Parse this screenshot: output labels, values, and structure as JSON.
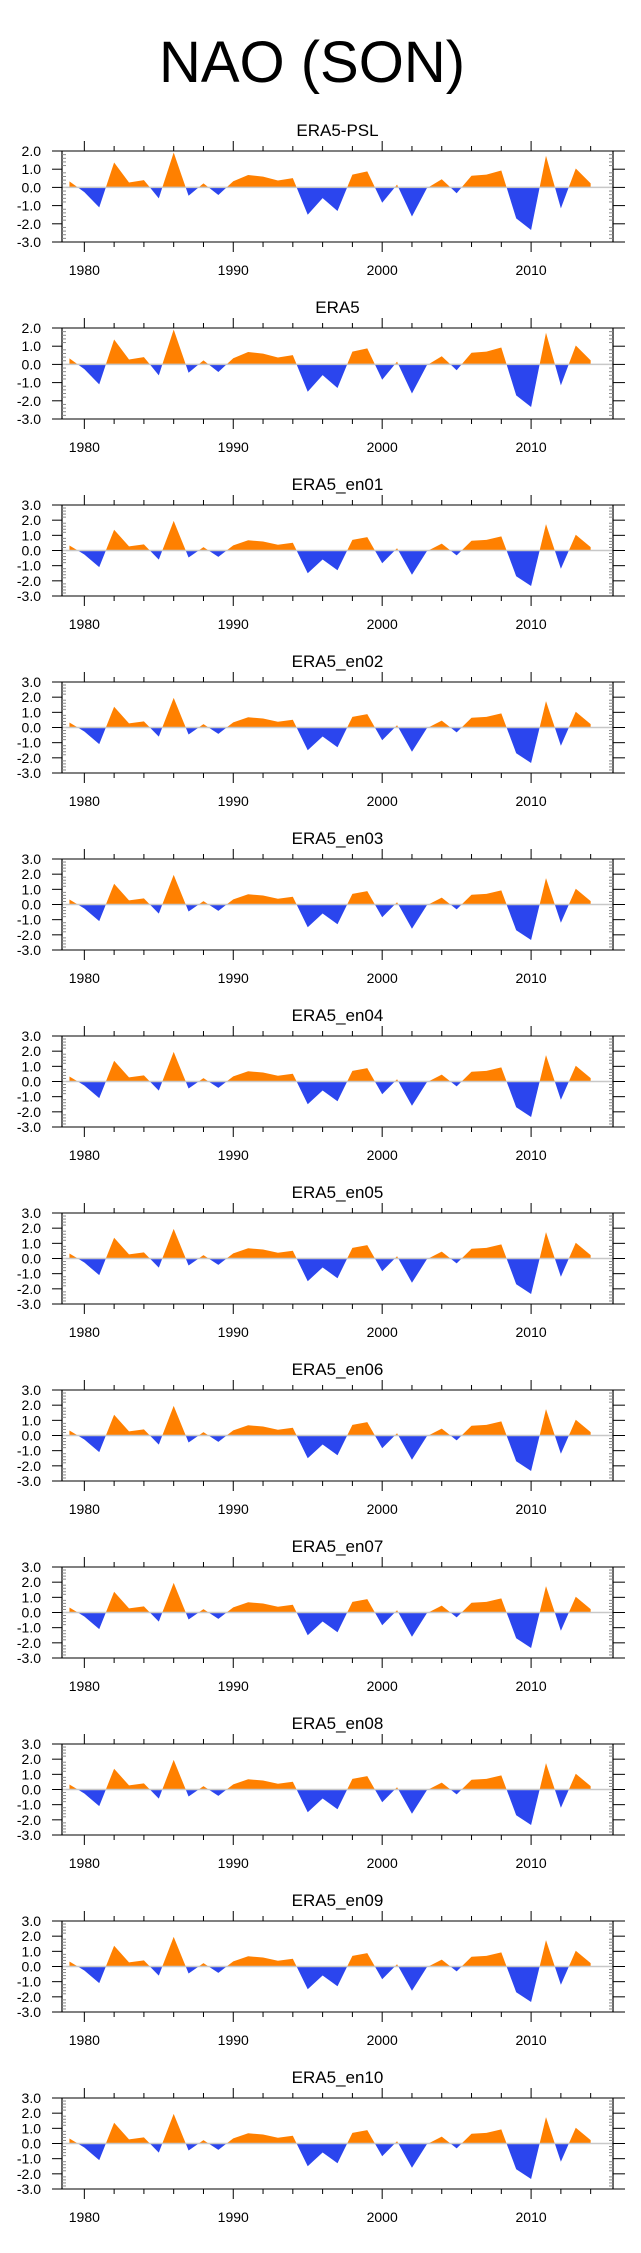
{
  "title": "NAO (SON)",
  "chart_data": {
    "type": "area",
    "title": "NAO (SON)",
    "xlabel": "",
    "ylabel": "",
    "x": [
      1979,
      1980,
      1981,
      1982,
      1983,
      1984,
      1985,
      1986,
      1987,
      1988,
      1989,
      1990,
      1991,
      1992,
      1993,
      1994,
      1995,
      1996,
      1997,
      1998,
      1999,
      2000,
      2001,
      2002,
      2003,
      2004,
      2005,
      2006,
      2007,
      2008,
      2009,
      2010,
      2011,
      2012,
      2013,
      2014
    ],
    "xlim": [
      1978.5,
      2015.5
    ],
    "x_major_ticks": [
      1980,
      1990,
      2000,
      2010
    ],
    "x_minor_tick_step": 2,
    "positive_color": "#FF8000",
    "negative_color": "#2B45EE",
    "zero_line_color": "#C8C8C8",
    "grid": false,
    "legend": "none",
    "panels": [
      {
        "name": "ERA5-PSL",
        "ylim": [
          -3.0,
          2.0
        ],
        "yticks": [
          "2.0",
          "1.0",
          "0.0",
          "-1.0",
          "-2.0",
          "-3.0"
        ],
        "values": [
          0.33,
          -0.26,
          -1.1,
          1.37,
          0.27,
          0.4,
          -0.6,
          1.92,
          -0.46,
          0.22,
          -0.42,
          0.34,
          0.68,
          0.59,
          0.38,
          0.51,
          -1.5,
          -0.59,
          -1.3,
          0.7,
          0.88,
          -0.84,
          0.15,
          -1.6,
          -0.05,
          0.45,
          -0.32,
          0.64,
          0.7,
          0.93,
          -1.7,
          -2.34,
          1.74,
          -1.15,
          1.04,
          0.22
        ]
      },
      {
        "name": "ERA5",
        "ylim": [
          -3.0,
          2.0
        ],
        "yticks": [
          "2.0",
          "1.0",
          "0.0",
          "-1.0",
          "-2.0",
          "-3.0"
        ],
        "values": [
          0.33,
          -0.26,
          -1.1,
          1.37,
          0.27,
          0.4,
          -0.6,
          1.92,
          -0.46,
          0.22,
          -0.42,
          0.34,
          0.68,
          0.59,
          0.38,
          0.51,
          -1.5,
          -0.59,
          -1.3,
          0.7,
          0.88,
          -0.84,
          0.15,
          -1.6,
          -0.05,
          0.45,
          -0.32,
          0.64,
          0.7,
          0.93,
          -1.7,
          -2.34,
          1.74,
          -1.15,
          1.04,
          0.22
        ]
      },
      {
        "name": "ERA5_en01",
        "ylim": [
          -3.0,
          3.0
        ],
        "yticks": [
          "3.0",
          "2.0",
          "1.0",
          "0.0",
          "-1.0",
          "-2.0",
          "-3.0"
        ],
        "values": [
          0.33,
          -0.26,
          -1.1,
          1.37,
          0.27,
          0.4,
          -0.6,
          1.95,
          -0.46,
          0.22,
          -0.42,
          0.34,
          0.68,
          0.59,
          0.38,
          0.51,
          -1.5,
          -0.59,
          -1.3,
          0.7,
          0.88,
          -0.84,
          0.15,
          -1.6,
          -0.05,
          0.45,
          -0.32,
          0.64,
          0.7,
          0.93,
          -1.7,
          -2.34,
          1.74,
          -1.2,
          1.04,
          0.22
        ]
      },
      {
        "name": "ERA5_en02",
        "ylim": [
          -3.0,
          3.0
        ],
        "yticks": [
          "3.0",
          "2.0",
          "1.0",
          "0.0",
          "-1.0",
          "-2.0",
          "-3.0"
        ],
        "values": [
          0.33,
          -0.26,
          -1.1,
          1.37,
          0.27,
          0.4,
          -0.6,
          1.95,
          -0.46,
          0.22,
          -0.42,
          0.34,
          0.68,
          0.59,
          0.38,
          0.51,
          -1.5,
          -0.59,
          -1.3,
          0.7,
          0.88,
          -0.84,
          0.15,
          -1.6,
          -0.05,
          0.45,
          -0.32,
          0.64,
          0.7,
          0.93,
          -1.7,
          -2.34,
          1.74,
          -1.2,
          1.04,
          0.22
        ]
      },
      {
        "name": "ERA5_en03",
        "ylim": [
          -3.0,
          3.0
        ],
        "yticks": [
          "3.0",
          "2.0",
          "1.0",
          "0.0",
          "-1.0",
          "-2.0",
          "-3.0"
        ],
        "values": [
          0.33,
          -0.26,
          -1.1,
          1.37,
          0.27,
          0.4,
          -0.6,
          1.95,
          -0.46,
          0.22,
          -0.42,
          0.34,
          0.68,
          0.59,
          0.38,
          0.51,
          -1.5,
          -0.59,
          -1.3,
          0.7,
          0.88,
          -0.84,
          0.15,
          -1.6,
          -0.05,
          0.45,
          -0.32,
          0.64,
          0.7,
          0.93,
          -1.7,
          -2.34,
          1.74,
          -1.2,
          1.04,
          0.22
        ]
      },
      {
        "name": "ERA5_en04",
        "ylim": [
          -3.0,
          3.0
        ],
        "yticks": [
          "3.0",
          "2.0",
          "1.0",
          "0.0",
          "-1.0",
          "-2.0",
          "-3.0"
        ],
        "values": [
          0.33,
          -0.26,
          -1.1,
          1.37,
          0.27,
          0.4,
          -0.6,
          1.95,
          -0.46,
          0.22,
          -0.42,
          0.34,
          0.68,
          0.59,
          0.38,
          0.51,
          -1.5,
          -0.59,
          -1.3,
          0.7,
          0.88,
          -0.84,
          0.15,
          -1.6,
          -0.05,
          0.45,
          -0.32,
          0.64,
          0.7,
          0.93,
          -1.7,
          -2.34,
          1.74,
          -1.2,
          1.04,
          0.22
        ]
      },
      {
        "name": "ERA5_en05",
        "ylim": [
          -3.0,
          3.0
        ],
        "yticks": [
          "3.0",
          "2.0",
          "1.0",
          "0.0",
          "-1.0",
          "-2.0",
          "-3.0"
        ],
        "values": [
          0.33,
          -0.26,
          -1.1,
          1.37,
          0.27,
          0.4,
          -0.6,
          1.95,
          -0.46,
          0.22,
          -0.42,
          0.34,
          0.68,
          0.59,
          0.38,
          0.51,
          -1.5,
          -0.59,
          -1.3,
          0.7,
          0.88,
          -0.84,
          0.15,
          -1.6,
          -0.05,
          0.45,
          -0.32,
          0.64,
          0.7,
          0.93,
          -1.7,
          -2.34,
          1.74,
          -1.2,
          1.04,
          0.22
        ]
      },
      {
        "name": "ERA5_en06",
        "ylim": [
          -3.0,
          3.0
        ],
        "yticks": [
          "3.0",
          "2.0",
          "1.0",
          "0.0",
          "-1.0",
          "-2.0",
          "-3.0"
        ],
        "values": [
          0.33,
          -0.26,
          -1.1,
          1.37,
          0.27,
          0.4,
          -0.6,
          1.95,
          -0.46,
          0.22,
          -0.42,
          0.34,
          0.68,
          0.59,
          0.38,
          0.51,
          -1.5,
          -0.59,
          -1.3,
          0.7,
          0.88,
          -0.84,
          0.15,
          -1.6,
          -0.05,
          0.45,
          -0.32,
          0.64,
          0.7,
          0.93,
          -1.7,
          -2.34,
          1.74,
          -1.2,
          1.04,
          0.22
        ]
      },
      {
        "name": "ERA5_en07",
        "ylim": [
          -3.0,
          3.0
        ],
        "yticks": [
          "3.0",
          "2.0",
          "1.0",
          "0.0",
          "-1.0",
          "-2.0",
          "-3.0"
        ],
        "values": [
          0.33,
          -0.26,
          -1.1,
          1.37,
          0.27,
          0.4,
          -0.6,
          1.95,
          -0.46,
          0.22,
          -0.42,
          0.34,
          0.68,
          0.59,
          0.38,
          0.51,
          -1.5,
          -0.59,
          -1.3,
          0.7,
          0.88,
          -0.84,
          0.15,
          -1.6,
          -0.05,
          0.45,
          -0.32,
          0.64,
          0.7,
          0.93,
          -1.7,
          -2.34,
          1.74,
          -1.2,
          1.04,
          0.22
        ]
      },
      {
        "name": "ERA5_en08",
        "ylim": [
          -3.0,
          3.0
        ],
        "yticks": [
          "3.0",
          "2.0",
          "1.0",
          "0.0",
          "-1.0",
          "-2.0",
          "-3.0"
        ],
        "values": [
          0.33,
          -0.26,
          -1.1,
          1.37,
          0.27,
          0.4,
          -0.6,
          1.95,
          -0.46,
          0.22,
          -0.42,
          0.34,
          0.68,
          0.59,
          0.38,
          0.51,
          -1.5,
          -0.59,
          -1.3,
          0.7,
          0.88,
          -0.84,
          0.15,
          -1.6,
          -0.05,
          0.45,
          -0.32,
          0.64,
          0.7,
          0.93,
          -1.7,
          -2.34,
          1.74,
          -1.2,
          1.04,
          0.22
        ]
      },
      {
        "name": "ERA5_en09",
        "ylim": [
          -3.0,
          3.0
        ],
        "yticks": [
          "3.0",
          "2.0",
          "1.0",
          "0.0",
          "-1.0",
          "-2.0",
          "-3.0"
        ],
        "values": [
          0.33,
          -0.26,
          -1.1,
          1.37,
          0.27,
          0.4,
          -0.6,
          1.95,
          -0.46,
          0.22,
          -0.42,
          0.34,
          0.68,
          0.59,
          0.38,
          0.51,
          -1.5,
          -0.59,
          -1.3,
          0.7,
          0.88,
          -0.84,
          0.15,
          -1.6,
          -0.05,
          0.45,
          -0.32,
          0.64,
          0.7,
          0.93,
          -1.7,
          -2.34,
          1.74,
          -1.2,
          1.04,
          0.22
        ]
      },
      {
        "name": "ERA5_en10",
        "ylim": [
          -3.0,
          3.0
        ],
        "yticks": [
          "3.0",
          "2.0",
          "1.0",
          "0.0",
          "-1.0",
          "-2.0",
          "-3.0"
        ],
        "values": [
          0.33,
          -0.26,
          -1.1,
          1.37,
          0.27,
          0.4,
          -0.6,
          1.95,
          -0.46,
          0.22,
          -0.42,
          0.34,
          0.68,
          0.59,
          0.38,
          0.51,
          -1.5,
          -0.59,
          -1.3,
          0.7,
          0.88,
          -0.84,
          0.15,
          -1.6,
          -0.05,
          0.45,
          -0.32,
          0.64,
          0.7,
          0.93,
          -1.7,
          -2.34,
          1.74,
          -1.2,
          1.04,
          0.22
        ]
      }
    ]
  }
}
